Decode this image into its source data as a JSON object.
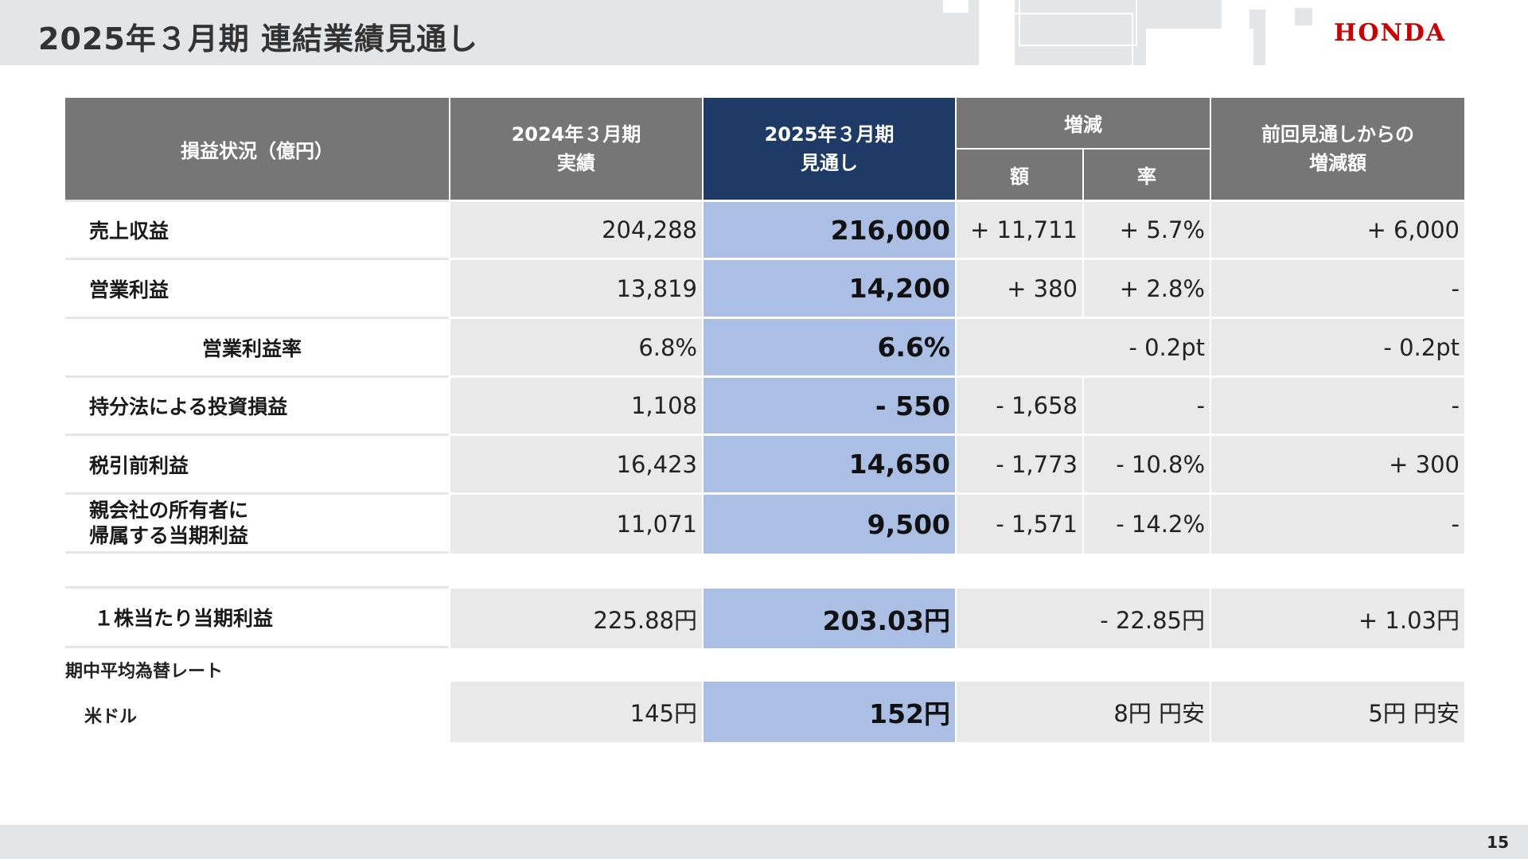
{
  "title": "2025年３月期 連結業績見通し",
  "logo_text": "HONDA",
  "page_number": "15",
  "colors": {
    "header_gray": "#767676",
    "forecast_header": "#1e3a66",
    "forecast_fill": "#aabfe3",
    "logo_red": "#cc0000"
  },
  "table": {
    "headers": {
      "item": "損益状況（億円）",
      "prev_line1": "2024年３月期",
      "prev_line2": "実績",
      "fc_line1": "2025年３月期",
      "fc_line2": "見通し",
      "change": "増減",
      "amount": "額",
      "rate": "率",
      "vs_prev_line1": "前回見通しからの",
      "vs_prev_line2": "増減額"
    },
    "rows": [
      {
        "label": "売上収益",
        "prev": "204,288",
        "forecast": "216,000",
        "amount": "+ 11,711",
        "rate": "+ 5.7%",
        "vs_prev": "+ 6,000"
      },
      {
        "label": "営業利益",
        "prev": "13,819",
        "forecast": "14,200",
        "amount": "+ 380",
        "rate": "+ 2.8%",
        "vs_prev": "-"
      },
      {
        "label": "営業利益率",
        "prev": "6.8%",
        "forecast": "6.6%",
        "change": "- 0.2pt",
        "vs_prev": "- 0.2pt"
      },
      {
        "label": "持分法による投資損益",
        "prev": "1,108",
        "forecast": "- 550",
        "amount": "- 1,658",
        "rate": "-",
        "vs_prev": "-"
      },
      {
        "label": "税引前利益",
        "prev": "16,423",
        "forecast": "14,650",
        "amount": "- 1,773",
        "rate": "- 10.8%",
        "vs_prev": "+ 300"
      },
      {
        "label_line1": "親会社の所有者に",
        "label_line2": "帰属する当期利益",
        "prev": "11,071",
        "forecast": "9,500",
        "amount": "- 1,571",
        "rate": "- 14.2%",
        "vs_prev": "-"
      }
    ],
    "eps": {
      "label": "１株当たり当期利益",
      "prev": "225.88円",
      "forecast": "203.03円",
      "change": "- 22.85円",
      "vs_prev": "+ 1.03円"
    },
    "fx": {
      "section_label": "期中平均為替レート",
      "label": "米ドル",
      "prev": "145円",
      "forecast": "152円",
      "change": "8円 円安",
      "vs_prev": "5円 円安"
    }
  }
}
